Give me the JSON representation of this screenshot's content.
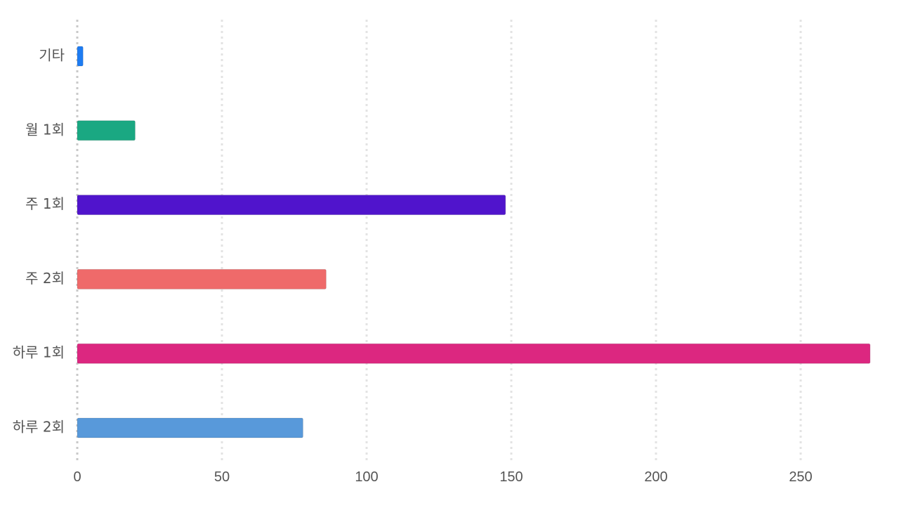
{
  "chart_data": {
    "type": "bar",
    "orientation": "horizontal",
    "categories": [
      "기타",
      "월 1회",
      "주 1회",
      "주 2회",
      "하루 1회",
      "하루 2회"
    ],
    "values": [
      2,
      20,
      148,
      86,
      274,
      78
    ],
    "colors": [
      "#1e7cf2",
      "#1aa882",
      "#5014cc",
      "#ef6a6a",
      "#dc2780",
      "#5899da"
    ],
    "xlim": [
      0,
      275
    ],
    "xticks": [
      0,
      50,
      100,
      150,
      200,
      250
    ],
    "grid": true,
    "title": "",
    "xlabel": "",
    "ylabel": ""
  }
}
